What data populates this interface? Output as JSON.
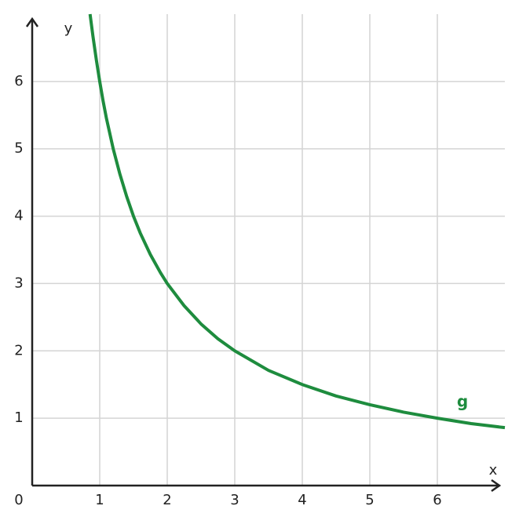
{
  "chart_data": {
    "type": "line",
    "x_label": "x",
    "y_label": "y",
    "x": [
      0.857,
      0.9,
      0.95,
      1,
      1.05,
      1.1,
      1.2,
      1.3,
      1.4,
      1.5,
      1.6,
      1.75,
      1.9,
      2,
      2.25,
      2.5,
      2.75,
      3,
      3.5,
      4,
      4.5,
      5,
      5.5,
      6,
      6.5,
      7
    ],
    "series": [
      {
        "name": "g",
        "color": "#1e8c3e",
        "values": [
          7.0,
          6.67,
          6.32,
          6.0,
          5.71,
          5.45,
          5.0,
          4.62,
          4.29,
          4.0,
          3.75,
          3.43,
          3.16,
          3.0,
          2.67,
          2.4,
          2.18,
          2.0,
          1.71,
          1.5,
          1.33,
          1.2,
          1.09,
          1.0,
          0.92,
          0.86
        ]
      }
    ],
    "xlim": [
      0,
      7
    ],
    "ylim": [
      0,
      7
    ],
    "xticks": [
      0,
      1,
      2,
      3,
      4,
      5,
      6
    ],
    "yticks": [
      1,
      2,
      3,
      4,
      5,
      6
    ],
    "grid": true
  }
}
